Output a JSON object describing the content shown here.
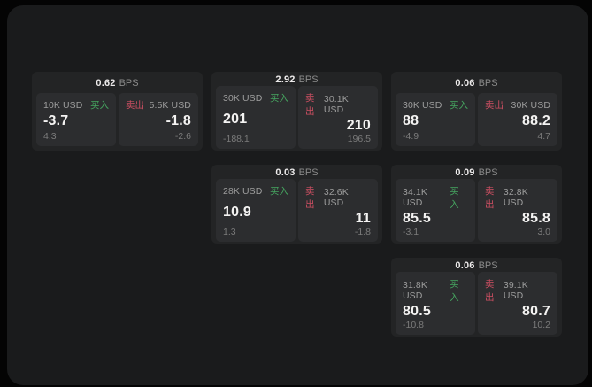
{
  "colors": {
    "buy_accent": "#46a660",
    "sell_accent": "#cc4f62",
    "surface": "#1a1b1c",
    "card": "#232425",
    "tile": "#2c2d2f"
  },
  "labels": {
    "bps_unit": "BPS",
    "buy": "买入",
    "sell": "卖出"
  },
  "cards": [
    {
      "bps": "0.62",
      "buy": {
        "amount": "10K USD",
        "main": "-3.7",
        "sub": "4.3"
      },
      "sell": {
        "amount": "5.5K USD",
        "main": "-1.8",
        "sub": "-2.6"
      }
    },
    {
      "bps": "2.92",
      "buy": {
        "amount": "30K USD",
        "main": "201",
        "sub": "-188.1"
      },
      "sell": {
        "amount": "30.1K USD",
        "main": "210",
        "sub": "196.5"
      }
    },
    {
      "bps": "0.06",
      "buy": {
        "amount": "30K USD",
        "main": "88",
        "sub": "-4.9"
      },
      "sell": {
        "amount": "30K USD",
        "main": "88.2",
        "sub": "4.7"
      }
    },
    {
      "bps": "0.03",
      "buy": {
        "amount": "28K USD",
        "main": "10.9",
        "sub": "1.3"
      },
      "sell": {
        "amount": "32.6K USD",
        "main": "11",
        "sub": "-1.8"
      }
    },
    {
      "bps": "0.09",
      "buy": {
        "amount": "34.1K USD",
        "main": "85.5",
        "sub": "-3.1"
      },
      "sell": {
        "amount": "32.8K USD",
        "main": "85.8",
        "sub": "3.0"
      }
    },
    {
      "bps": "0.06",
      "buy": {
        "amount": "31.8K USD",
        "main": "80.5",
        "sub": "-10.8"
      },
      "sell": {
        "amount": "39.1K USD",
        "main": "80.7",
        "sub": "10.2"
      }
    }
  ]
}
